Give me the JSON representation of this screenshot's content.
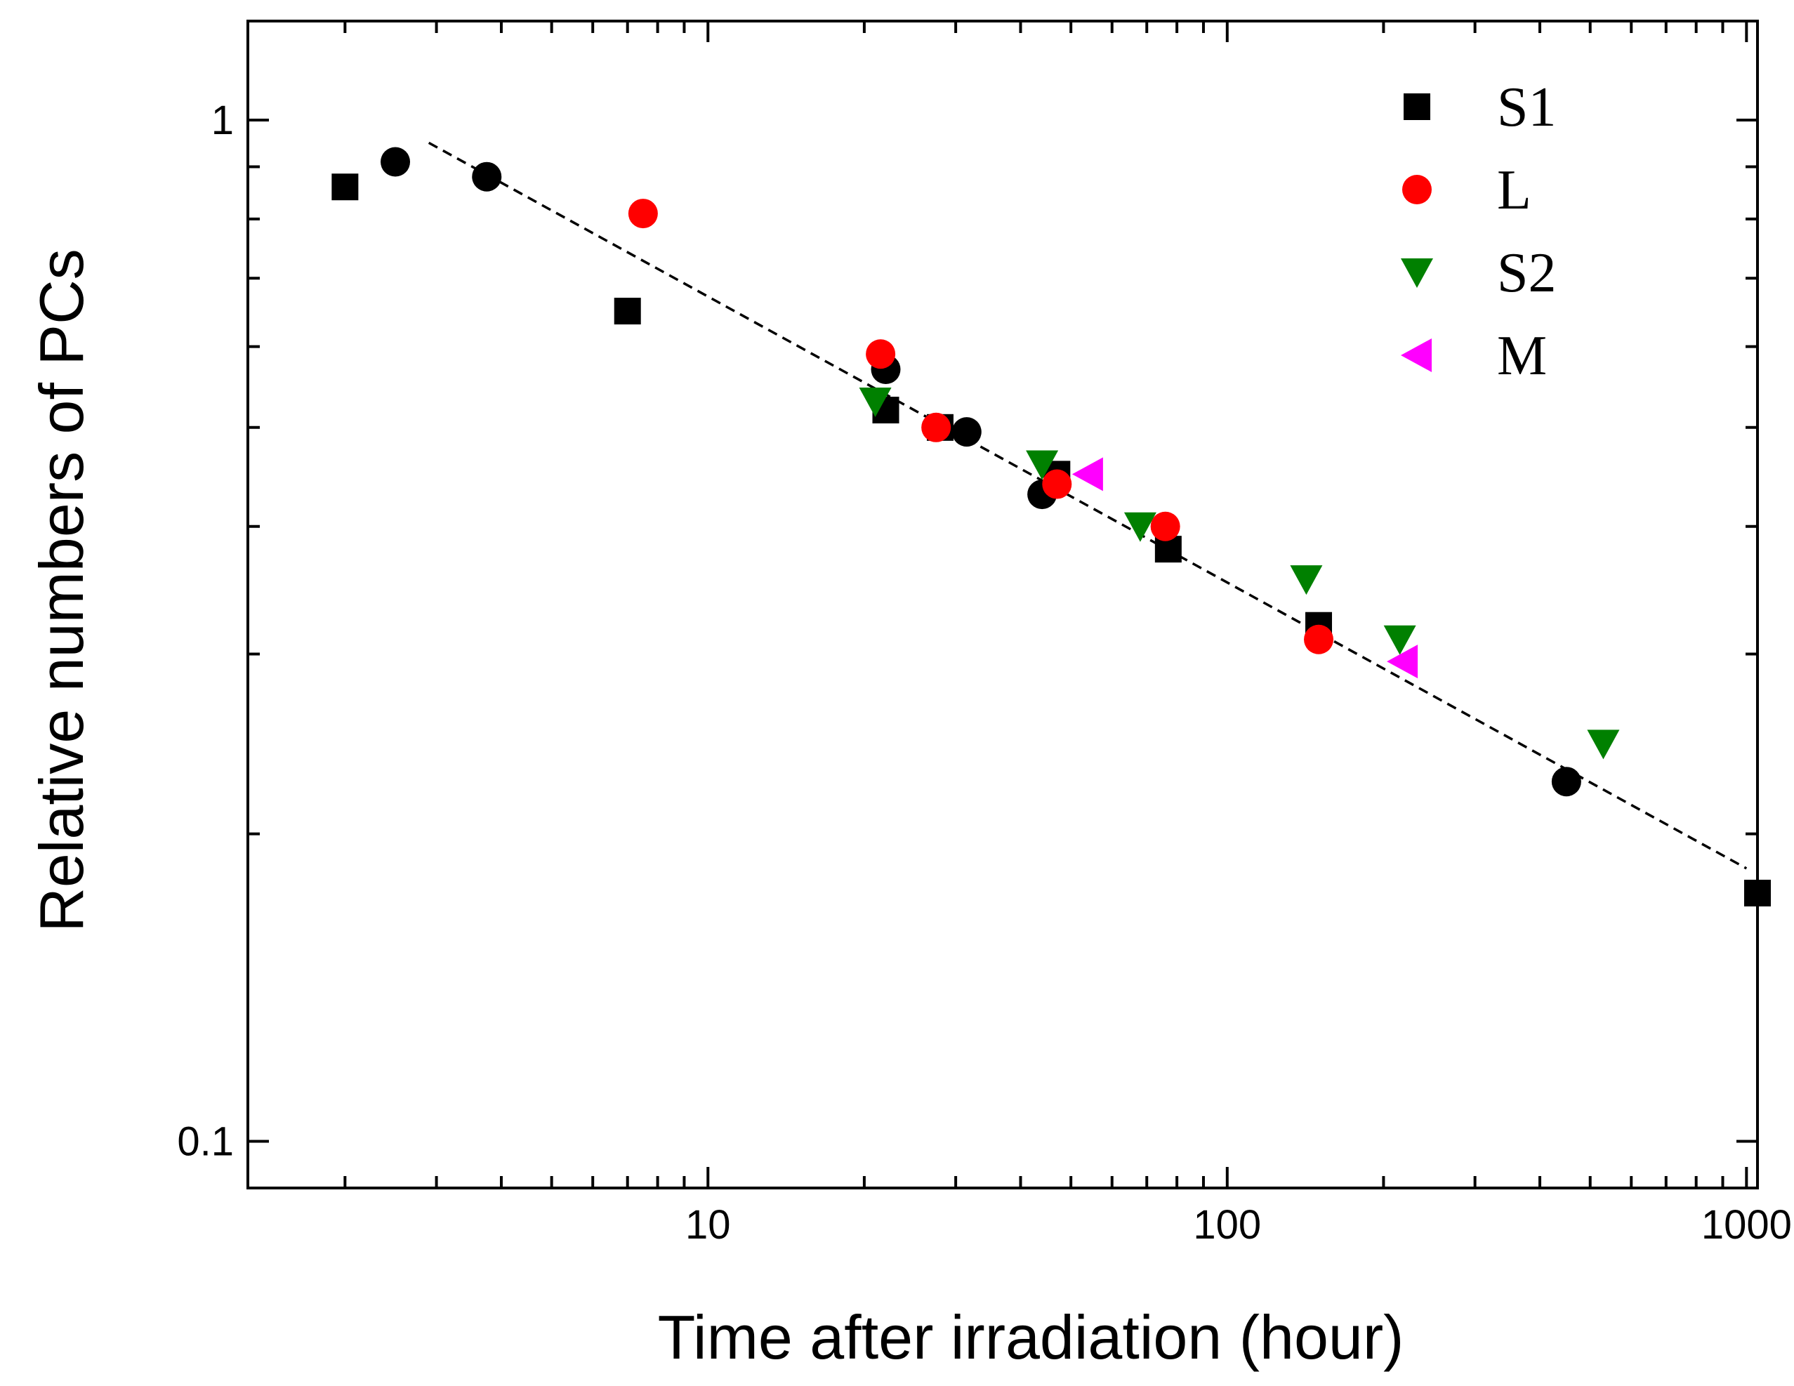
{
  "chart_data": {
    "type": "scatter",
    "xscale": "log",
    "yscale": "log",
    "xlabel": "Time after irradiation (hour)",
    "ylabel": "Relative numbers of PCs",
    "xlim": [
      1.3,
      1050
    ],
    "ylim": [
      0.09,
      1.25
    ],
    "xticks": [
      {
        "value": 10,
        "label": "10"
      },
      {
        "value": 100,
        "label": "100"
      },
      {
        "value": 1000,
        "label": "1000"
      }
    ],
    "yticks": [
      {
        "value": 0.1,
        "label": "0.1"
      },
      {
        "value": 1,
        "label": "1"
      }
    ],
    "legend_position": "top-right",
    "series": [
      {
        "name": "S1",
        "marker": "square",
        "color": "#000000",
        "points": [
          [
            2.0,
            0.86
          ],
          [
            7.0,
            0.65
          ],
          [
            22,
            0.52
          ],
          [
            28,
            0.5
          ],
          [
            47,
            0.45
          ],
          [
            77,
            0.38
          ],
          [
            150,
            0.32
          ],
          [
            1050,
            0.175
          ]
        ]
      },
      {
        "name": "S1",
        "marker": "circle",
        "color": "#000000",
        "in_legend": false,
        "points": [
          [
            2.5,
            0.91
          ],
          [
            3.75,
            0.88
          ],
          [
            22,
            0.57
          ],
          [
            31.5,
            0.495
          ],
          [
            44,
            0.43
          ],
          [
            450,
            0.225
          ]
        ]
      },
      {
        "name": "L",
        "marker": "circle",
        "color": "#ff0000",
        "points": [
          [
            7.5,
            0.81
          ],
          [
            21.5,
            0.59
          ],
          [
            27.5,
            0.5
          ],
          [
            47,
            0.44
          ],
          [
            76,
            0.4
          ],
          [
            150,
            0.31
          ]
        ]
      },
      {
        "name": "S2",
        "marker": "triangle-down",
        "color": "#008000",
        "points": [
          [
            21,
            0.53
          ],
          [
            44,
            0.46
          ],
          [
            68,
            0.4
          ],
          [
            142,
            0.355
          ],
          [
            215,
            0.31
          ],
          [
            530,
            0.245
          ]
        ]
      },
      {
        "name": "M",
        "marker": "triangle-left",
        "color": "#ff00ff",
        "points": [
          [
            54,
            0.45
          ],
          [
            218,
            0.295
          ]
        ]
      }
    ],
    "fit_line": {
      "style": "dashed",
      "color": "#000000",
      "points": [
        [
          2.9,
          0.95
        ],
        [
          1000,
          0.185
        ]
      ]
    }
  }
}
